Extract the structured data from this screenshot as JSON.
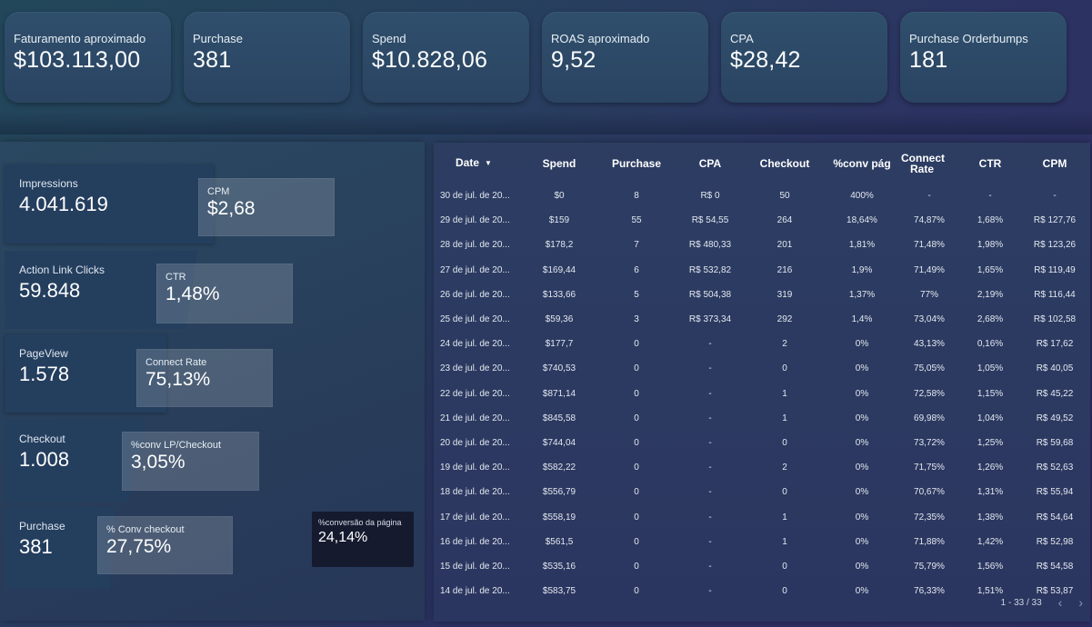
{
  "kpis": [
    {
      "label": "Faturamento aproximado",
      "value": "$103.113,00"
    },
    {
      "label": "Purchase",
      "value": "381"
    },
    {
      "label": "Spend",
      "value": "$10.828,06"
    },
    {
      "label": "ROAS aproximado",
      "value": "9,52"
    },
    {
      "label": "CPA",
      "value": "$28,42"
    },
    {
      "label": "Purchase Orderbumps",
      "value": "181"
    }
  ],
  "funnel": [
    {
      "label": "Impressions",
      "value": "4.041.619"
    },
    {
      "label": "Action Link Clicks",
      "value": "59.848"
    },
    {
      "label": "PageView",
      "value": "1.578"
    },
    {
      "label": "Checkout",
      "value": "1.008"
    },
    {
      "label": "Purchase",
      "value": "381"
    }
  ],
  "rates": [
    {
      "label": "CPM",
      "value": "$2,68"
    },
    {
      "label": "CTR",
      "value": "1,48%"
    },
    {
      "label": "Connect Rate",
      "value": "75,13%"
    },
    {
      "label": "%conv LP/Checkout",
      "value": "3,05%"
    },
    {
      "label": "% Conv checkout",
      "value": "27,75%"
    }
  ],
  "page_conversion": {
    "label": "%conversão da página",
    "value": "24,14%"
  },
  "table": {
    "headers": [
      "Date",
      "Spend",
      "Purchase",
      "CPA",
      "Checkout",
      "%conv pág",
      "Connect Rate",
      "CTR",
      "CPM"
    ],
    "sort_icon": "sort-desc-icon",
    "rows": [
      [
        "30 de jul. de 20...",
        "$0",
        "8",
        "R$ 0",
        "50",
        "400%",
        "-",
        "-",
        "-"
      ],
      [
        "29 de jul. de 20...",
        "$159",
        "55",
        "R$ 54,55",
        "264",
        "18,64%",
        "74,87%",
        "1,68%",
        "R$ 127,76"
      ],
      [
        "28 de jul. de 20...",
        "$178,2",
        "7",
        "R$ 480,33",
        "201",
        "1,81%",
        "71,48%",
        "1,98%",
        "R$ 123,26"
      ],
      [
        "27 de jul. de 20...",
        "$169,44",
        "6",
        "R$ 532,82",
        "216",
        "1,9%",
        "71,49%",
        "1,65%",
        "R$ 119,49"
      ],
      [
        "26 de jul. de 20...",
        "$133,66",
        "5",
        "R$ 504,38",
        "319",
        "1,37%",
        "77%",
        "2,19%",
        "R$ 116,44"
      ],
      [
        "25 de jul. de 20...",
        "$59,36",
        "3",
        "R$ 373,34",
        "292",
        "1,4%",
        "73,04%",
        "2,68%",
        "R$ 102,58"
      ],
      [
        "24 de jul. de 20...",
        "$177,7",
        "0",
        "-",
        "2",
        "0%",
        "43,13%",
        "0,16%",
        "R$ 17,62"
      ],
      [
        "23 de jul. de 20...",
        "$740,53",
        "0",
        "-",
        "0",
        "0%",
        "75,05%",
        "1,05%",
        "R$ 40,05"
      ],
      [
        "22 de jul. de 20...",
        "$871,14",
        "0",
        "-",
        "1",
        "0%",
        "72,58%",
        "1,15%",
        "R$ 45,22"
      ],
      [
        "21 de jul. de 20...",
        "$845,58",
        "0",
        "-",
        "1",
        "0%",
        "69,98%",
        "1,04%",
        "R$ 49,52"
      ],
      [
        "20 de jul. de 20...",
        "$744,04",
        "0",
        "-",
        "0",
        "0%",
        "73,72%",
        "1,25%",
        "R$ 59,68"
      ],
      [
        "19 de jul. de 20...",
        "$582,22",
        "0",
        "-",
        "2",
        "0%",
        "71,75%",
        "1,26%",
        "R$ 52,63"
      ],
      [
        "18 de jul. de 20...",
        "$556,79",
        "0",
        "-",
        "0",
        "0%",
        "70,67%",
        "1,31%",
        "R$ 55,94"
      ],
      [
        "17 de jul. de 20...",
        "$558,19",
        "0",
        "-",
        "1",
        "0%",
        "72,35%",
        "1,38%",
        "R$ 54,64"
      ],
      [
        "16 de jul. de 20...",
        "$561,5",
        "0",
        "-",
        "1",
        "0%",
        "71,88%",
        "1,42%",
        "R$ 52,98"
      ],
      [
        "15 de jul. de 20...",
        "$535,16",
        "0",
        "-",
        "0",
        "0%",
        "75,79%",
        "1,56%",
        "R$ 54,58"
      ],
      [
        "14 de jul. de 20...",
        "$583,75",
        "0",
        "-",
        "0",
        "0%",
        "76,33%",
        "1,51%",
        "R$ 53,87"
      ]
    ]
  },
  "pagination": {
    "range": "1 - 33 / 33",
    "prev_icon": "chevron-left-icon",
    "next_icon": "chevron-right-icon"
  }
}
